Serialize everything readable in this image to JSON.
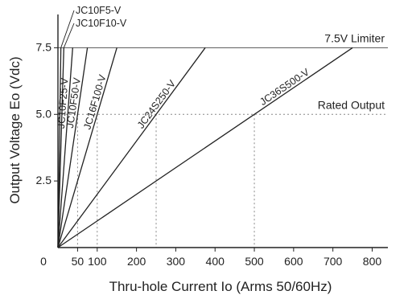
{
  "chart_data": {
    "type": "line",
    "xlabel": "Thru-hole Current Io (Arms 50/60Hz)",
    "ylabel": "Output Voltage Eo (Vdc)",
    "xlim": [
      0,
      840
    ],
    "ylim": [
      0,
      8.75
    ],
    "xticks": [
      {
        "value": 0,
        "label": "0"
      },
      {
        "value": 50,
        "label": "50"
      },
      {
        "value": 100,
        "label": "100"
      },
      {
        "value": 200,
        "label": "200"
      },
      {
        "value": 300,
        "label": "300"
      },
      {
        "value": 400,
        "label": "400"
      },
      {
        "value": 500,
        "label": "500"
      },
      {
        "value": 600,
        "label": "600"
      },
      {
        "value": 700,
        "label": "700"
      },
      {
        "value": 800,
        "label": "800"
      }
    ],
    "yticks": [
      {
        "value": 2.5,
        "label": "2.5"
      },
      {
        "value": 5.0,
        "label": "5.0"
      },
      {
        "value": 7.5,
        "label": "7.5"
      }
    ],
    "series": [
      {
        "name": "JC10F5-V",
        "rated_current": 5,
        "x": [
          0,
          7.5
        ],
        "y": [
          0,
          7.5
        ]
      },
      {
        "name": "JC10F10-V",
        "rated_current": 10,
        "x": [
          0,
          15
        ],
        "y": [
          0,
          7.5
        ]
      },
      {
        "name": "JC10F25-V",
        "rated_current": 25,
        "x": [
          0,
          37.5
        ],
        "y": [
          0,
          7.5
        ]
      },
      {
        "name": "JC10F50-V",
        "rated_current": 50,
        "x": [
          0,
          75
        ],
        "y": [
          0,
          7.5
        ]
      },
      {
        "name": "JC16F100-V",
        "rated_current": 100,
        "x": [
          0,
          150
        ],
        "y": [
          0,
          7.5
        ]
      },
      {
        "name": "JC24S250-V",
        "rated_current": 250,
        "x": [
          0,
          375
        ],
        "y": [
          0,
          7.5
        ]
      },
      {
        "name": "JC36S500-V",
        "rated_current": 500,
        "x": [
          0,
          750
        ],
        "y": [
          0,
          7.5
        ]
      }
    ],
    "reference_lines": [
      {
        "label": "7.5V Limiter",
        "y": 7.5,
        "style": "solid"
      },
      {
        "label": "Rated Output",
        "y": 5.0,
        "style": "dotted"
      }
    ],
    "drop_lines": [
      {
        "x": 50,
        "y": 5.0
      },
      {
        "x": 100,
        "y": 5.0
      },
      {
        "x": 250,
        "y": 5.0
      },
      {
        "x": 500,
        "y": 5.0
      }
    ],
    "grid": false,
    "legend": "none"
  }
}
